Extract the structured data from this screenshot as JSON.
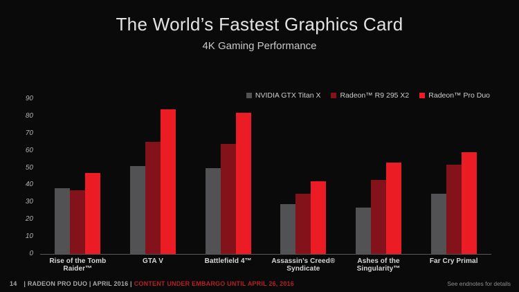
{
  "slide": {
    "title": "The World’s Fastest Graphics Card",
    "subtitle": "4K Gaming Performance",
    "footer": {
      "page_number": "14",
      "left_text": "| RADEON PRO DUO | APRIL 2016 |",
      "embargo_text": "CONTENT UNDER EMBARGO UNTIL APRIL 26, 2016",
      "embargo_color": "#b81f25",
      "right_text": "See endnotes for details"
    }
  },
  "chart_data": {
    "type": "bar",
    "title": "4K Gaming Performance",
    "xlabel": "",
    "ylabel": "",
    "ylim": [
      0,
      90
    ],
    "yticks": [
      0,
      10,
      20,
      30,
      40,
      50,
      60,
      70,
      80,
      90
    ],
    "grid": false,
    "legend_position": "top-right",
    "background": "#0a0a0a",
    "categories": [
      "Rise of the Tomb Raider™",
      "GTA V",
      "Battlefield 4™",
      "Assassin’s Creed® Syndicate",
      "Ashes of the Singularity™",
      "Far Cry Primal"
    ],
    "series": [
      {
        "name": "NVIDIA GTX Titan X",
        "color": "#525254",
        "values": [
          38,
          51,
          50,
          29,
          27,
          35
        ]
      },
      {
        "name": "Radeon™ R9 295 X2",
        "color": "#84121b",
        "values": [
          37,
          65,
          64,
          35,
          43,
          52
        ]
      },
      {
        "name": "Radeon™ Pro Duo",
        "color": "#ec1c24",
        "values": [
          47,
          84,
          82,
          42,
          53,
          59
        ]
      }
    ]
  }
}
